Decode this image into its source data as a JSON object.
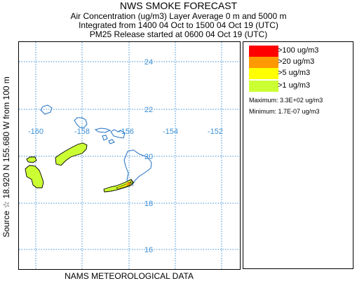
{
  "header": {
    "title": "NWS SMOKE FORECAST",
    "line1": "Air Concentration (ug/m3) Layer Average    0 m and  5000 m",
    "line2": "Integrated from 1400 04 Oct to 1500 04 Oct 19 (UTC)",
    "line3": "PM25 Release started at 0600 04 Oct 19 (UTC)"
  },
  "side_label": "Source ☆  18.920  N 155.680  W          from  100 m",
  "footer": "NAMS METEOROLOGICAL DATA",
  "map": {
    "lat_labels": [
      "24",
      "22",
      "20",
      "18",
      "16"
    ],
    "lon_labels": [
      "-160",
      "-158",
      "-156",
      "-154",
      "-152"
    ],
    "source_marker": "☆",
    "colors": {
      "grid": "#3a8fd6",
      "coast": "#1e6fc4",
      "plume_outline": "#000000"
    }
  },
  "legend": {
    "items": [
      {
        "label": ">100 ug/m3",
        "color": "#ff0000"
      },
      {
        "label": ">20 ug/m3",
        "color": "#ff9900"
      },
      {
        "label": ">5 ug/m3",
        "color": "#ffff00"
      },
      {
        "label": ">1 ug/m3",
        "color": "#ccff33"
      }
    ],
    "maximum": "Maximum: 3.3E+02 ug/m3",
    "minimum": "Minimum: 1.7E-07 ug/m3"
  }
}
